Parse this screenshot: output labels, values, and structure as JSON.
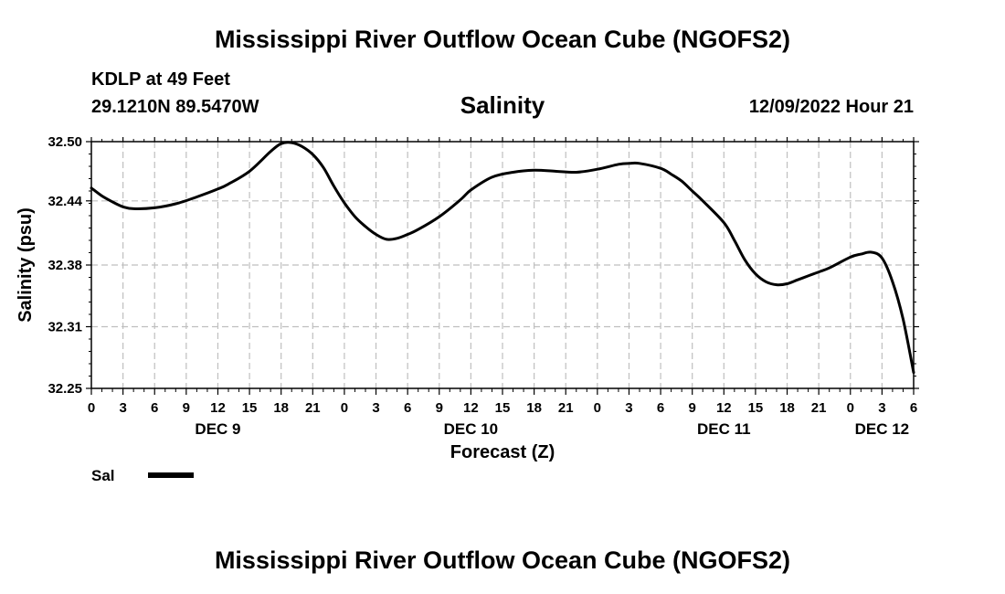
{
  "page": {
    "title_top": "Mississippi River Outflow Ocean Cube (NGOFS2)",
    "title_bottom": "Mississippi River Outflow Ocean Cube (NGOFS2)",
    "station_line": "KDLP at 49 Feet",
    "coords_line": "29.1210N  89.5470W",
    "subtitle": "Salinity",
    "date_line": "12/09/2022 Hour 21"
  },
  "colors": {
    "line": "#000000",
    "grid": "#bfbfbf"
  },
  "chart_data": {
    "type": "line",
    "title": "Salinity",
    "xlabel": "Forecast (Z)",
    "ylabel": "Salinity (psu)",
    "ylim": [
      32.25,
      32.5
    ],
    "xlim": [
      0,
      78
    ],
    "yticks": [
      {
        "value": 32.5,
        "label": "32.50"
      },
      {
        "value": 32.44,
        "label": "32.44"
      },
      {
        "value": 32.375,
        "label": "32.38"
      },
      {
        "value": 32.3125,
        "label": "32.31"
      },
      {
        "value": 32.25,
        "label": "32.25"
      }
    ],
    "xticks": [
      {
        "hour": 0,
        "label": "0"
      },
      {
        "hour": 3,
        "label": "3"
      },
      {
        "hour": 6,
        "label": "6"
      },
      {
        "hour": 9,
        "label": "9"
      },
      {
        "hour": 12,
        "label": "12"
      },
      {
        "hour": 15,
        "label": "15"
      },
      {
        "hour": 18,
        "label": "18"
      },
      {
        "hour": 21,
        "label": "21"
      },
      {
        "hour": 24,
        "label": "0"
      },
      {
        "hour": 27,
        "label": "3"
      },
      {
        "hour": 30,
        "label": "6"
      },
      {
        "hour": 33,
        "label": "9"
      },
      {
        "hour": 36,
        "label": "12"
      },
      {
        "hour": 39,
        "label": "15"
      },
      {
        "hour": 42,
        "label": "18"
      },
      {
        "hour": 45,
        "label": "21"
      },
      {
        "hour": 48,
        "label": "0"
      },
      {
        "hour": 51,
        "label": "3"
      },
      {
        "hour": 54,
        "label": "6"
      },
      {
        "hour": 57,
        "label": "9"
      },
      {
        "hour": 60,
        "label": "12"
      },
      {
        "hour": 63,
        "label": "15"
      },
      {
        "hour": 66,
        "label": "18"
      },
      {
        "hour": 69,
        "label": "21"
      },
      {
        "hour": 72,
        "label": "0"
      },
      {
        "hour": 75,
        "label": "3"
      },
      {
        "hour": 78,
        "label": "6"
      }
    ],
    "day_labels": [
      {
        "hour": 12,
        "label": "DEC 9"
      },
      {
        "hour": 36,
        "label": "DEC 10"
      },
      {
        "hour": 60,
        "label": "DEC 11"
      },
      {
        "hour": 75,
        "label": "DEC 12"
      }
    ],
    "legend": [
      {
        "name": "Sal"
      }
    ],
    "series": [
      {
        "name": "Sal",
        "x": [
          0,
          1,
          2,
          3,
          4,
          6,
          8,
          10,
          12,
          13,
          15,
          17,
          18,
          19,
          20,
          21,
          22,
          23,
          24,
          25,
          26,
          27,
          28,
          29,
          30,
          31,
          33,
          35,
          36,
          38,
          40,
          42,
          44,
          46,
          48,
          50,
          51,
          52,
          54,
          55,
          56,
          57,
          58,
          60,
          61,
          62,
          63,
          64,
          65,
          66,
          67,
          68,
          69,
          70,
          72,
          73,
          74,
          75,
          76,
          77,
          78
        ],
        "y": [
          32.453,
          32.445,
          32.439,
          32.434,
          32.432,
          32.433,
          32.437,
          32.444,
          32.452,
          32.457,
          32.47,
          32.49,
          32.498,
          32.499,
          32.495,
          32.487,
          32.474,
          32.455,
          32.438,
          32.424,
          32.414,
          32.406,
          32.401,
          32.402,
          32.406,
          32.411,
          32.424,
          32.441,
          32.451,
          32.464,
          32.469,
          32.471,
          32.47,
          32.469,
          32.472,
          32.477,
          32.478,
          32.478,
          32.473,
          32.467,
          32.46,
          32.45,
          32.44,
          32.418,
          32.4,
          32.38,
          32.366,
          32.358,
          32.355,
          32.356,
          32.36,
          32.364,
          32.368,
          32.372,
          32.383,
          32.386,
          32.388,
          32.382,
          32.358,
          32.32,
          32.266
        ]
      }
    ]
  }
}
